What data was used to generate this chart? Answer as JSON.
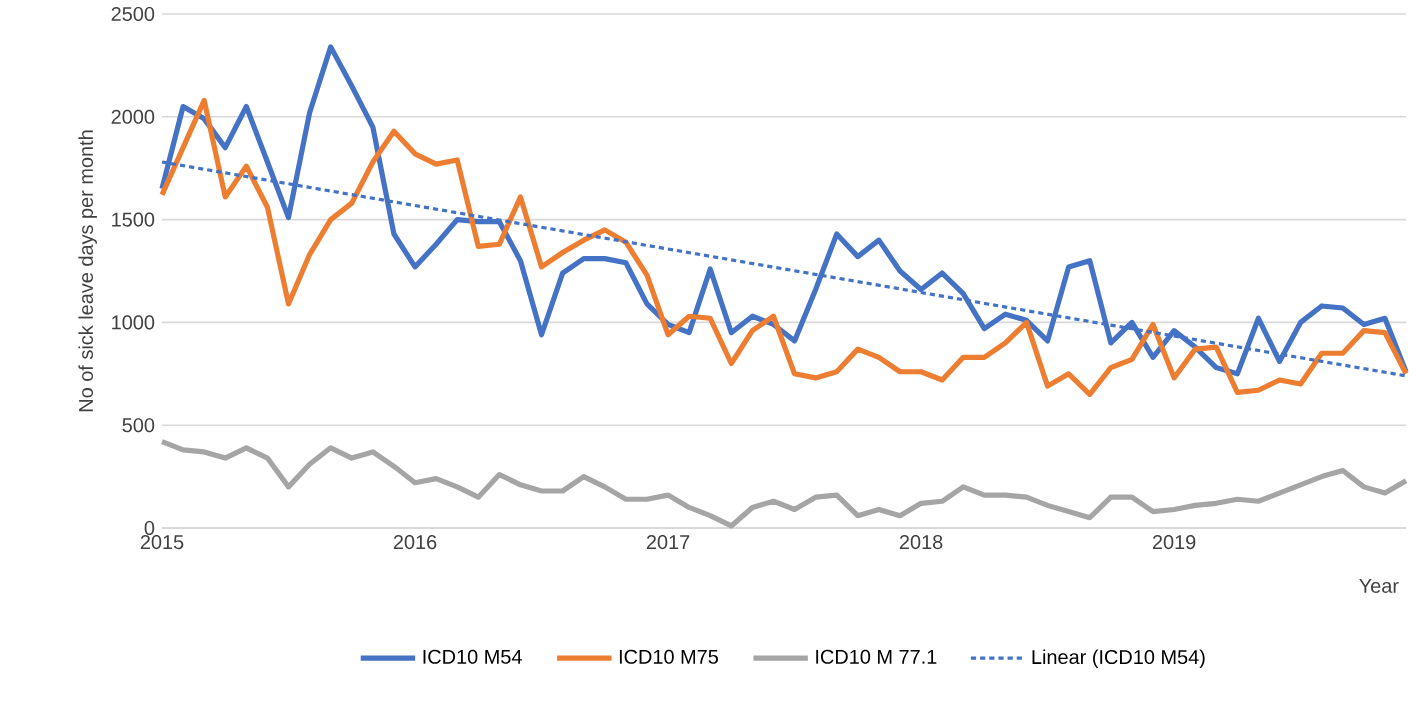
{
  "chart_data": {
    "type": "line",
    "xlabel": "Year",
    "ylabel": "No of sick leave days per month",
    "x": [
      "2015-01",
      "2015-02",
      "2015-03",
      "2015-04",
      "2015-05",
      "2015-06",
      "2015-07",
      "2015-08",
      "2015-09",
      "2015-10",
      "2015-11",
      "2015-12",
      "2016-01",
      "2016-02",
      "2016-03",
      "2016-04",
      "2016-05",
      "2016-06",
      "2016-07",
      "2016-08",
      "2016-09",
      "2016-10",
      "2016-11",
      "2016-12",
      "2017-01",
      "2017-02",
      "2017-03",
      "2017-04",
      "2017-05",
      "2017-06",
      "2017-07",
      "2017-08",
      "2017-09",
      "2017-10",
      "2017-11",
      "2017-12",
      "2018-01",
      "2018-02",
      "2018-03",
      "2018-04",
      "2018-05",
      "2018-06",
      "2018-07",
      "2018-08",
      "2018-09",
      "2018-10",
      "2018-11",
      "2018-12",
      "2019-01",
      "2019-02",
      "2019-03",
      "2019-04",
      "2019-05",
      "2019-06",
      "2019-07",
      "2019-08",
      "2019-09",
      "2019-10",
      "2019-11",
      "2019-12"
    ],
    "series": [
      {
        "name": "ICD10 M54",
        "color": "#4472c4",
        "values": [
          1650,
          2050,
          1990,
          1850,
          2050,
          1780,
          1510,
          2020,
          2340,
          2150,
          1950,
          1430,
          1270,
          1380,
          1500,
          1490,
          1490,
          1300,
          940,
          1240,
          1310,
          1310,
          1290,
          1090,
          990,
          950,
          1260,
          950,
          1030,
          990,
          910,
          1160,
          1430,
          1320,
          1400,
          1250,
          1160,
          1240,
          1140,
          970,
          1040,
          1010,
          910,
          1270,
          1300,
          900,
          1000,
          830,
          960,
          880,
          780,
          750,
          1020,
          810,
          1000,
          1080,
          1070,
          990,
          1020,
          760
        ]
      },
      {
        "name": "ICD10 M75",
        "color": "#ed7d31",
        "values": [
          1620,
          1850,
          2080,
          1610,
          1760,
          1560,
          1090,
          1330,
          1500,
          1580,
          1780,
          1930,
          1820,
          1770,
          1790,
          1370,
          1380,
          1610,
          1270,
          1340,
          1400,
          1450,
          1390,
          1230,
          940,
          1030,
          1020,
          800,
          960,
          1030,
          750,
          730,
          760,
          870,
          830,
          760,
          760,
          720,
          830,
          830,
          900,
          1000,
          690,
          750,
          650,
          780,
          820,
          990,
          730,
          870,
          880,
          660,
          670,
          720,
          700,
          850,
          850,
          960,
          950,
          750
        ]
      },
      {
        "name": "ICD10 M 77.1",
        "color": "#a5a5a5",
        "values": [
          420,
          380,
          370,
          340,
          390,
          340,
          200,
          310,
          390,
          340,
          370,
          300,
          220,
          240,
          200,
          150,
          260,
          210,
          180,
          180,
          250,
          200,
          140,
          140,
          160,
          100,
          60,
          10,
          100,
          130,
          90,
          150,
          160,
          60,
          90,
          60,
          120,
          130,
          200,
          160,
          160,
          150,
          110,
          80,
          50,
          150,
          150,
          80,
          90,
          110,
          120,
          140,
          130,
          170,
          210,
          250,
          280,
          200,
          170,
          230
        ]
      },
      {
        "name": "Linear (ICD10 M54)",
        "color": "#4472c4",
        "line_style": "dotted",
        "x": [
          "2015-01",
          "2019-12"
        ],
        "values": [
          1780,
          740
        ]
      }
    ],
    "xlim": [
      "2015-01",
      "2019-12"
    ],
    "xticks": [
      "2015",
      "2016",
      "2017",
      "2018",
      "2019"
    ],
    "ylim": [
      0,
      2500
    ],
    "yticks": [
      0,
      500,
      1000,
      1500,
      2000,
      2500
    ],
    "grid": "y",
    "legend": "bottom",
    "marker": "none",
    "line_style": "solid"
  }
}
